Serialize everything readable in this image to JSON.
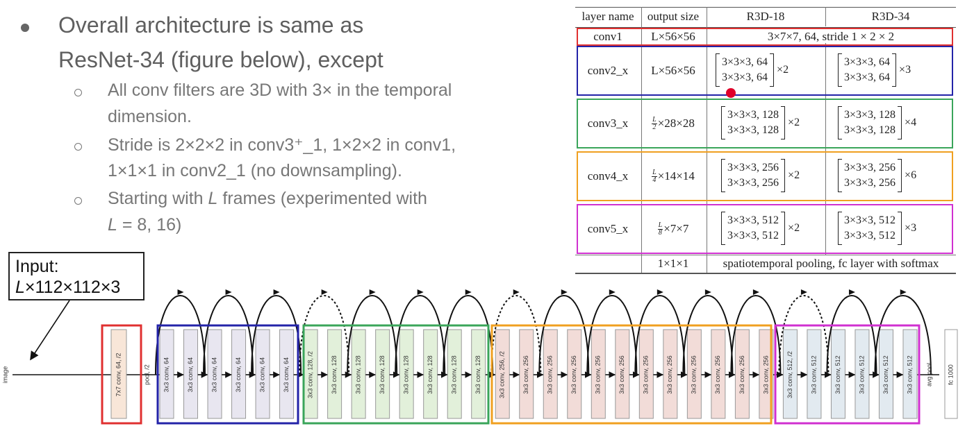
{
  "bullets": {
    "main_line1": "Overall architecture is same as",
    "main_line2": "ResNet-34 (figure below), except",
    "sub1_line1": "All conv filters are 3D with 3× in the temporal",
    "sub1_line2": "dimension.",
    "sub2_line1": "Stride is 2×2×2 in conv3⁺_1, 1×2×2 in conv1,",
    "sub2_line2": "1×1×1 in conv2_1 (no downsampling).",
    "sub3_line1_pre": "Starting with ",
    "sub3_line1_var": "L",
    "sub3_line1_post": " frames (experimented with",
    "sub3_line2_var": "L",
    "sub3_line2_post": " = 8, 16)"
  },
  "input_box": {
    "line1": "Input:",
    "line2_var": "L",
    "line2_rest": "×112×112×3"
  },
  "table": {
    "headers": [
      "layer name",
      "output size",
      "R3D-18",
      "R3D-34"
    ],
    "conv1": {
      "name": "conv1",
      "size": "L×56×56",
      "spec": "3×7×7, 64, stride 1 × 2 × 2",
      "color": "#e03030"
    },
    "rows": [
      {
        "name": "conv2_x",
        "size_frac": "",
        "size": "L×56×56",
        "a": "3×3×3, 64",
        "b": "3×3×3, 64",
        "m18": "×2",
        "m34": "×3",
        "color": "#2323a8"
      },
      {
        "name": "conv3_x",
        "size_frac": "2",
        "size": "×28×28",
        "a": "3×3×3, 128",
        "b": "3×3×3, 128",
        "m18": "×2",
        "m34": "×4",
        "color": "#3aa55a"
      },
      {
        "name": "conv4_x",
        "size_frac": "4",
        "size": "×14×14",
        "a": "3×3×3, 256",
        "b": "3×3×3, 256",
        "m18": "×2",
        "m34": "×6",
        "color": "#f0a020"
      },
      {
        "name": "conv5_x",
        "size_frac": "8",
        "size": "×7×7",
        "a": "3×3×3, 512",
        "b": "3×3×3, 512",
        "m18": "×2",
        "m34": "×3",
        "color": "#d030d0"
      }
    ],
    "final": {
      "size": "1×1×1",
      "spec": "spatiotemporal pooling, fc layer with softmax"
    }
  },
  "diagram": {
    "image_label": "image",
    "pool_label": "pool, /2",
    "avgpool_label": "avg pool",
    "fc_label": "fc 1000",
    "conv1_label": "7x7 conv, 64, /2",
    "layers": [
      "3x3 conv, 64",
      "3x3 conv, 64",
      "3x3 conv, 64",
      "3x3 conv, 64",
      "3x3 conv, 64",
      "3x3 conv, 64",
      "3x3 conv, 128, /2",
      "3x3 conv, 128",
      "3x3 conv, 128",
      "3x3 conv, 128",
      "3x3 conv, 128",
      "3x3 conv, 128",
      "3x3 conv, 128",
      "3x3 conv, 128",
      "3x3 conv, 256, /2",
      "3x3 conv, 256",
      "3x3 conv, 256",
      "3x3 conv, 256",
      "3x3 conv, 256",
      "3x3 conv, 256",
      "3x3 conv, 256",
      "3x3 conv, 256",
      "3x3 conv, 256",
      "3x3 conv, 256",
      "3x3 conv, 256",
      "3x3 conv, 256",
      "3x3 conv, 512, /2",
      "3x3 conv, 512",
      "3x3 conv, 512",
      "3x3 conv, 512",
      "3x3 conv, 512",
      "3x3 conv, 512"
    ],
    "colors": {
      "conv1": "#f8e6d8",
      "c64": "#e8e6f0",
      "c128": "#e2f0da",
      "c256": "#f2dcd8",
      "c512": "#e2eaf0",
      "red": "#e03030",
      "blue": "#2323a8",
      "green": "#3aa55a",
      "orange": "#f0a020",
      "magenta": "#d030d0"
    }
  }
}
